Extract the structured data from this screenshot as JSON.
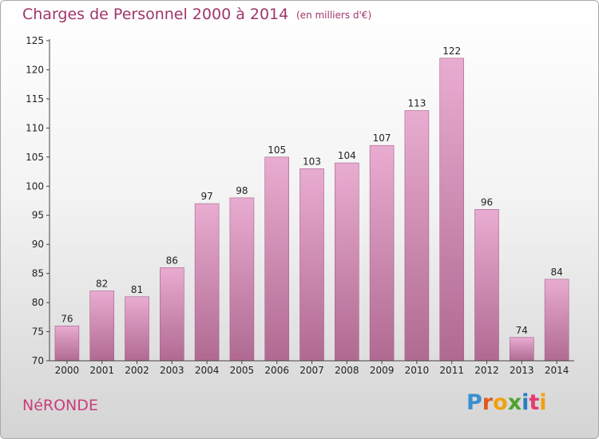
{
  "title": "Charges de Personnel 2000 à 2014",
  "subtitle": "(en milliers d'€)",
  "commune": "NéRONDE",
  "logo_text": "Proxiti",
  "colors": {
    "title": "#a0366a",
    "bar_top": "#e9acd1",
    "bar_bottom": "#b06a92",
    "commune": "#c8407c"
  },
  "chart_data": {
    "type": "bar",
    "categories": [
      "2000",
      "2001",
      "2002",
      "2003",
      "2004",
      "2005",
      "2006",
      "2007",
      "2008",
      "2009",
      "2010",
      "2011",
      "2012",
      "2013",
      "2014"
    ],
    "values": [
      76,
      82,
      81,
      86,
      97,
      98,
      105,
      103,
      104,
      107,
      113,
      122,
      96,
      74,
      84
    ],
    "title": "Charges de Personnel 2000 à 2014",
    "subtitle": "(en milliers d'€)",
    "ylim": [
      70,
      125
    ],
    "yticks": [
      70,
      75,
      80,
      85,
      90,
      95,
      100,
      105,
      110,
      115,
      120,
      125
    ],
    "grid": false,
    "legend": "none"
  }
}
